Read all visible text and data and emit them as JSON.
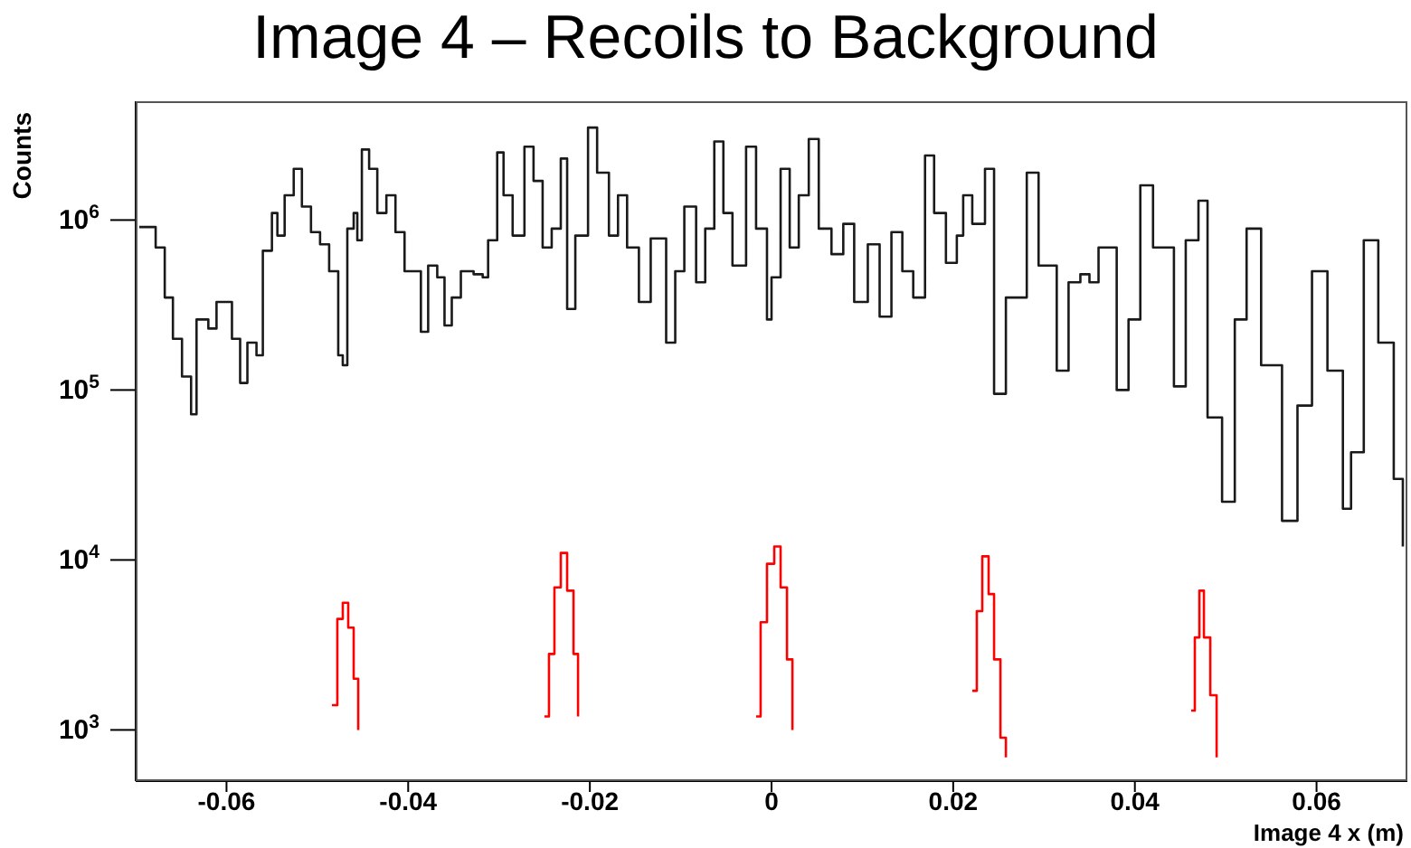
{
  "chart_data": {
    "type": "step",
    "title": "Image 4 – Recoils to Background",
    "xlabel": "Image 4 x (m)",
    "ylabel": "Counts",
    "log": "y",
    "xlim": [
      -0.07,
      0.07
    ],
    "xticks": [
      -0.06,
      -0.04,
      -0.02,
      0,
      0.02,
      0.04,
      0.06
    ],
    "ylim": [
      500,
      5000000
    ],
    "yticks": [
      {
        "value": 1000,
        "label": "10$^{3}$"
      },
      {
        "value": 10000,
        "label": "10$^{4}$"
      },
      {
        "value": 100000,
        "label": "10$^{5}$"
      },
      {
        "value": 1000000,
        "label": "10$^{6}$"
      }
    ],
    "series": [
      {
        "color": "#1a1a1a",
        "x": [
          -0.0696,
          -0.0678,
          -0.0668,
          -0.0659,
          -0.0649,
          -0.0639,
          -0.0633,
          -0.0626,
          -0.062,
          -0.0611,
          -0.0603,
          -0.0594,
          -0.0585,
          -0.0577,
          -0.0567,
          -0.056,
          -0.055,
          -0.0544,
          -0.0536,
          -0.0526,
          -0.0517,
          -0.0507,
          -0.0497,
          -0.0487,
          -0.0477,
          -0.0472,
          -0.0467,
          -0.046,
          -0.0456,
          -0.0451,
          -0.0443,
          -0.0434,
          -0.0424,
          -0.0414,
          -0.0404,
          -0.0394,
          -0.0386,
          -0.0378,
          -0.0368,
          -0.036,
          -0.0352,
          -0.0342,
          -0.0328,
          -0.0318,
          -0.0312,
          -0.0302,
          -0.0295,
          -0.0285,
          -0.0272,
          -0.0262,
          -0.0252,
          -0.0242,
          -0.0232,
          -0.0225,
          -0.0216,
          -0.0202,
          -0.0192,
          -0.0179,
          -0.0169,
          -0.0159,
          -0.0146,
          -0.0133,
          -0.0116,
          -0.0106,
          -0.0096,
          -0.0083,
          -0.0073,
          -0.0063,
          -0.0053,
          -0.0043,
          -0.0028,
          -0.0017,
          -0.0005,
          0,
          0.001,
          0.002,
          0.003,
          0.0041,
          0.0052,
          0.0066,
          0.0079,
          0.0091,
          0.0106,
          0.0119,
          0.0132,
          0.0144,
          0.0156,
          0.0169,
          0.0179,
          0.0192,
          0.0204,
          0.0211,
          0.0221,
          0.0235,
          0.0245,
          0.0258,
          0.0268,
          0.0281,
          0.0294,
          0.0314,
          0.0327,
          0.034,
          0.035,
          0.036,
          0.038,
          0.0393,
          0.0406,
          0.042,
          0.0443,
          0.0456,
          0.047,
          0.048,
          0.0496,
          0.051,
          0.0523,
          0.0539,
          0.0562,
          0.0579,
          0.0595,
          0.0612,
          0.0629,
          0.0638,
          0.0652,
          0.0668,
          0.0685,
          0.0695
        ],
        "values": [
          910000,
          690000,
          350000,
          200000,
          120000,
          72000,
          260000,
          260000,
          230000,
          330000,
          330000,
          200000,
          110000,
          190000,
          160000,
          660000,
          1100000,
          810000,
          1400000,
          2000000,
          1200000,
          850000,
          720000,
          500000,
          160000,
          140000,
          890000,
          1100000,
          760000,
          2600000,
          2000000,
          1100000,
          1400000,
          850000,
          500000,
          500000,
          220000,
          540000,
          460000,
          240000,
          350000,
          500000,
          480000,
          460000,
          760000,
          2500000,
          1400000,
          810000,
          2700000,
          1700000,
          690000,
          890000,
          2300000,
          300000,
          810000,
          3500000,
          1900000,
          810000,
          1400000,
          690000,
          330000,
          780000,
          190000,
          500000,
          1200000,
          430000,
          890000,
          2900000,
          1100000,
          540000,
          2700000,
          890000,
          260000,
          460000,
          2000000,
          690000,
          1400000,
          3000000,
          890000,
          630000,
          950000,
          330000,
          720000,
          270000,
          850000,
          500000,
          350000,
          2400000,
          1100000,
          560000,
          810000,
          1400000,
          950000,
          2000000,
          95000,
          350000,
          350000,
          1900000,
          540000,
          130000,
          430000,
          480000,
          430000,
          690000,
          100000,
          260000,
          1600000,
          690000,
          105000,
          760000,
          1300000,
          69000,
          22000,
          260000,
          890000,
          140000,
          17000,
          81000,
          500000,
          130000,
          20000,
          43000,
          760000,
          190000,
          30000,
          12000
        ]
      },
      {
        "color": "#ff0000",
        "x": [
          -0.0484,
          -0.0478,
          -0.0472,
          -0.0466,
          -0.046,
          -0.0455,
          -0.045,
          -0.025,
          -0.0245,
          -0.0239,
          -0.0232,
          -0.0225,
          -0.0218,
          -0.0213,
          -0.0208,
          -0.0017,
          -0.0012,
          -0.0005,
          0.0003,
          0.001,
          0.0017,
          0.0023,
          0.003,
          0.0221,
          0.0226,
          0.0232,
          0.0239,
          0.0245,
          0.0252,
          0.0258,
          0.0263,
          0.0462,
          0.0466,
          0.0471,
          0.0476,
          0.0483,
          0.049
        ],
        "values": [
          1400,
          4500,
          5600,
          4000,
          2000,
          1000,
          null,
          1200,
          2800,
          6900,
          11000,
          6600,
          2800,
          1200,
          null,
          1200,
          4300,
          9500,
          12000,
          6900,
          2600,
          1000,
          null,
          1700,
          5000,
          10500,
          6300,
          2600,
          900,
          690,
          null,
          1300,
          3500,
          6600,
          3500,
          1600,
          690
        ]
      }
    ]
  }
}
